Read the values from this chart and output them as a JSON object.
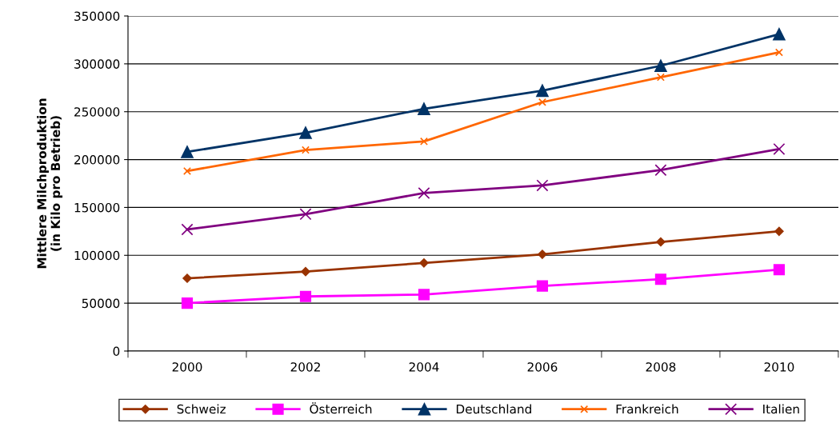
{
  "chart_data": {
    "type": "line",
    "ylabel": "Mittlere Milchproduktion\n(in Kilo pro Betrieb)",
    "categories": [
      "2000",
      "2002",
      "2004",
      "2006",
      "2008",
      "2010"
    ],
    "series": [
      {
        "name": "Schweiz",
        "color": "#993300",
        "marker": "diamond",
        "values": [
          76000,
          83000,
          92000,
          101000,
          114000,
          125000
        ]
      },
      {
        "name": "Österreich",
        "color": "#ff00ff",
        "marker": "square",
        "values": [
          50000,
          57000,
          59000,
          68000,
          75000,
          85000
        ]
      },
      {
        "name": "Deutschland",
        "color": "#003366",
        "marker": "triangle",
        "values": [
          208000,
          228000,
          253000,
          272000,
          298000,
          331000
        ]
      },
      {
        "name": "Frankreich",
        "color": "#ff6600",
        "marker": "cross",
        "values": [
          188000,
          210000,
          219000,
          260000,
          286000,
          312000
        ]
      },
      {
        "name": "Italien",
        "color": "#800080",
        "marker": "cross",
        "values": [
          127000,
          143000,
          165000,
          173000,
          189000,
          211000
        ]
      }
    ],
    "ylim": [
      0,
      350000
    ],
    "yticks": [
      0,
      50000,
      100000,
      150000,
      200000,
      250000,
      300000,
      350000
    ],
    "grid": "y",
    "legend": "bottom"
  }
}
